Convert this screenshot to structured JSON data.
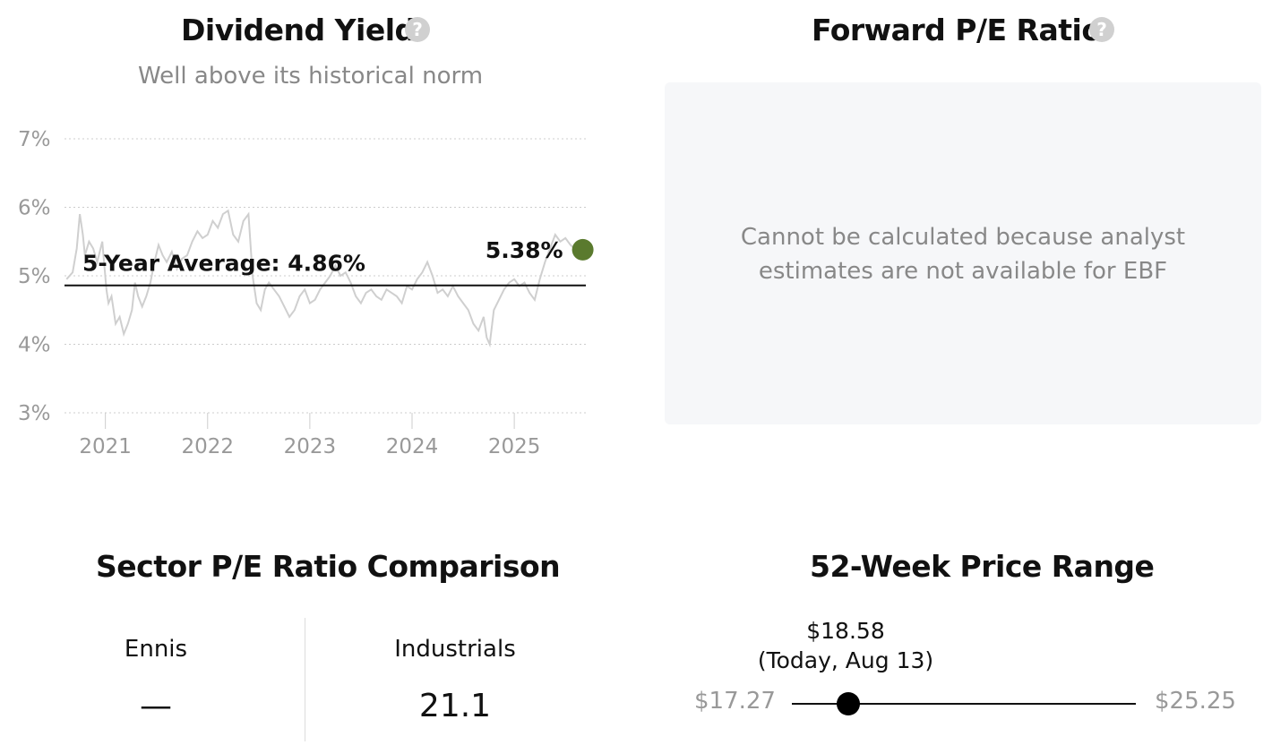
{
  "dividend_yield": {
    "title": "Dividend Yield",
    "subtitle": "Well above its historical norm",
    "average_label": "5-Year Average: 4.86%",
    "current_label": "5.38%"
  },
  "forward_pe": {
    "title": "Forward P/E Ratio",
    "message_line1": "Cannot be calculated because analyst",
    "message_line2": "estimates are not available for EBF"
  },
  "sector_pe": {
    "title": "Sector P/E Ratio Comparison",
    "columns": [
      {
        "name": "Ennis",
        "value": "—"
      },
      {
        "name": "Industrials",
        "value": "21.1"
      }
    ]
  },
  "price_range": {
    "title": "52-Week Price Range",
    "current_price": "$18.58",
    "current_note": "(Today, Aug 13)",
    "low": "$17.27",
    "high": "$25.25",
    "position_fraction": 0.164
  },
  "colors": {
    "current_dot": "#5a7a2e",
    "history_line": "#cfcfcf",
    "grid": "#cccccc"
  },
  "chart_data": {
    "type": "line",
    "title": "Dividend Yield",
    "ylim": [
      3,
      7
    ],
    "yticks": [
      "3%",
      "4%",
      "5%",
      "6%",
      "7%"
    ],
    "xlim": [
      2020.6,
      2025.7
    ],
    "xticks": [
      "2021",
      "2022",
      "2023",
      "2024",
      "2025"
    ],
    "grid": true,
    "average": 4.86,
    "current": 5.38,
    "series": [
      {
        "x": [
          2020.62,
          2020.68,
          2020.72,
          2020.75,
          2020.78,
          2020.8,
          2020.84,
          2020.88,
          2020.92,
          2020.97,
          2021.01,
          2021.03,
          2021.06,
          2021.1,
          2021.14,
          2021.18,
          2021.22,
          2021.26,
          2021.29,
          2021.32,
          2021.36,
          2021.4,
          2021.44,
          2021.48,
          2021.52,
          2021.56,
          2021.6,
          2021.65,
          2021.7,
          2021.75,
          2021.8,
          2021.85,
          2021.9,
          2021.95,
          2022.0,
          2022.05,
          2022.1,
          2022.15,
          2022.2,
          2022.25,
          2022.3,
          2022.35,
          2022.4,
          2022.44,
          2022.48,
          2022.52,
          2022.56,
          2022.6,
          2022.65,
          2022.7,
          2022.75,
          2022.8,
          2022.85,
          2022.9,
          2022.95,
          2023.0,
          2023.05,
          2023.1,
          2023.15,
          2023.2,
          2023.25,
          2023.3,
          2023.35,
          2023.4,
          2023.45,
          2023.5,
          2023.55,
          2023.6,
          2023.65,
          2023.7,
          2023.75,
          2023.8,
          2023.85,
          2023.9,
          2023.95,
          2024.0,
          2024.05,
          2024.1,
          2024.15,
          2024.2,
          2024.25,
          2024.3,
          2024.35,
          2024.4,
          2024.45,
          2024.5,
          2024.55,
          2024.6,
          2024.65,
          2024.7,
          2024.73,
          2024.76,
          2024.8,
          2024.85,
          2024.9,
          2024.95,
          2025.0,
          2025.05,
          2025.1,
          2025.15,
          2025.2,
          2025.25,
          2025.3,
          2025.35,
          2025.4,
          2025.45,
          2025.5,
          2025.55,
          2025.6
        ],
        "values": [
          4.95,
          5.05,
          5.4,
          5.9,
          5.6,
          5.3,
          5.5,
          5.4,
          5.2,
          5.5,
          4.8,
          4.6,
          4.7,
          4.3,
          4.4,
          4.15,
          4.3,
          4.5,
          4.9,
          4.7,
          4.55,
          4.7,
          4.9,
          5.2,
          5.45,
          5.3,
          5.2,
          5.35,
          5.1,
          5.25,
          5.3,
          5.5,
          5.65,
          5.55,
          5.6,
          5.8,
          5.7,
          5.9,
          5.95,
          5.6,
          5.5,
          5.8,
          5.9,
          5.0,
          4.6,
          4.5,
          4.8,
          4.9,
          4.8,
          4.7,
          4.55,
          4.4,
          4.5,
          4.7,
          4.8,
          4.6,
          4.65,
          4.8,
          4.9,
          5.0,
          5.15,
          5.0,
          5.05,
          4.9,
          4.7,
          4.6,
          4.75,
          4.8,
          4.7,
          4.65,
          4.8,
          4.75,
          4.7,
          4.6,
          4.85,
          4.8,
          4.95,
          5.05,
          5.2,
          5.0,
          4.75,
          4.8,
          4.7,
          4.85,
          4.7,
          4.6,
          4.5,
          4.3,
          4.2,
          4.4,
          4.1,
          4.0,
          4.5,
          4.65,
          4.8,
          4.9,
          4.95,
          4.85,
          4.9,
          4.75,
          4.65,
          4.95,
          5.2,
          5.4,
          5.6,
          5.5,
          5.55,
          5.45,
          5.38
        ]
      }
    ]
  }
}
